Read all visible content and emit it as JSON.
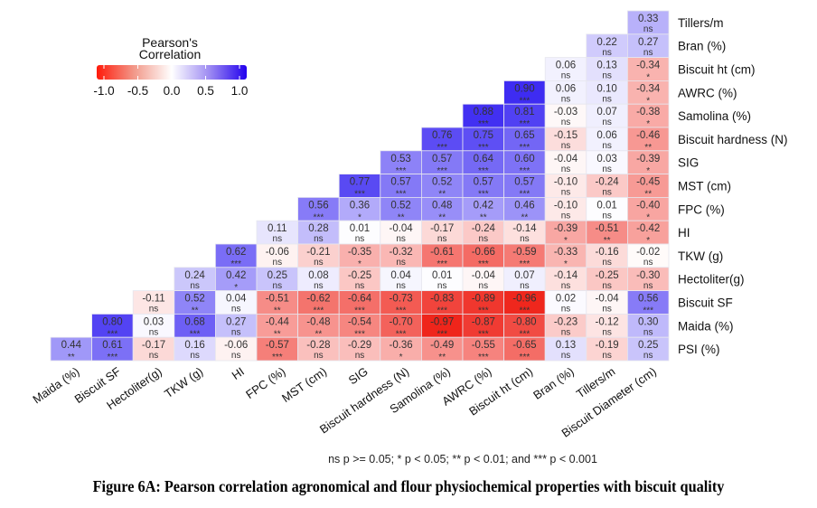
{
  "chart_data": {
    "type": "heatmap",
    "title": "",
    "subtitle": "",
    "variant": "lower-triangular correlation matrix (rotated)",
    "x_labels": [
      "Maida (%)",
      "Biscuit SF",
      "Hectoliter(g)",
      "TKW (g)",
      "HI",
      "FPC (%)",
      "MST (cm)",
      "SIG",
      "Biscuit hardness (N)",
      "Samolina (%)",
      "AWRC (%)",
      "Biscuit ht (cm)",
      "Bran (%)",
      "Tillers/m",
      "Biscuit Diameter (cm)"
    ],
    "y_labels": [
      "Tillers/m",
      "Bran (%)",
      "Biscuit ht (cm)",
      "AWRC (%)",
      "Samolina (%)",
      "Biscuit hardness (N)",
      "SIG",
      "MST (cm)",
      "FPC (%)",
      "HI",
      "TKW (g)",
      "Hectoliter(g)",
      "Biscuit SF",
      "Maida (%)",
      "PSI (%)"
    ],
    "rows": [
      {
        "label": "Tillers/m",
        "values": [
          0.33
        ],
        "sig": [
          "ns"
        ]
      },
      {
        "label": "Bran (%)",
        "values": [
          0.22,
          0.27
        ],
        "sig": [
          "ns",
          "ns"
        ]
      },
      {
        "label": "Biscuit ht (cm)",
        "values": [
          0.06,
          0.13,
          -0.34
        ],
        "sig": [
          "ns",
          "ns",
          "*"
        ]
      },
      {
        "label": "AWRC (%)",
        "values": [
          0.9,
          0.06,
          0.1,
          -0.34
        ],
        "sig": [
          "***",
          "ns",
          "ns",
          "*"
        ]
      },
      {
        "label": "Samolina (%)",
        "values": [
          0.88,
          0.81,
          -0.03,
          0.07,
          -0.38
        ],
        "sig": [
          "***",
          "***",
          "ns",
          "ns",
          "*"
        ]
      },
      {
        "label": "Biscuit hardness (N)",
        "values": [
          0.76,
          0.75,
          0.65,
          -0.15,
          0.06,
          -0.46
        ],
        "sig": [
          "***",
          "***",
          "***",
          "ns",
          "ns",
          "**"
        ]
      },
      {
        "label": "SIG",
        "values": [
          0.53,
          0.57,
          0.64,
          0.6,
          -0.04,
          0.03,
          -0.39
        ],
        "sig": [
          "***",
          "***",
          "***",
          "***",
          "ns",
          "ns",
          "*"
        ]
      },
      {
        "label": "MST (cm)",
        "values": [
          0.77,
          0.57,
          0.52,
          0.57,
          0.57,
          -0.1,
          -0.24,
          -0.45
        ],
        "sig": [
          "***",
          "***",
          "**",
          "***",
          "***",
          "ns",
          "ns",
          "**"
        ]
      },
      {
        "label": "FPC (%)",
        "values": [
          0.56,
          0.36,
          0.52,
          0.48,
          0.42,
          0.46,
          -0.1,
          0.01,
          -0.4
        ],
        "sig": [
          "***",
          "*",
          "**",
          "**",
          "**",
          "**",
          "ns",
          "ns",
          "*"
        ]
      },
      {
        "label": "HI",
        "values": [
          0.11,
          0.28,
          0.01,
          -0.04,
          -0.17,
          -0.24,
          -0.14,
          -0.39,
          -0.51,
          -0.42
        ],
        "sig": [
          "ns",
          "ns",
          "ns",
          "ns",
          "ns",
          "ns",
          "ns",
          "*",
          "**",
          "*"
        ]
      },
      {
        "label": "TKW (g)",
        "values": [
          0.62,
          -0.06,
          -0.21,
          -0.35,
          -0.32,
          -0.61,
          -0.66,
          -0.59,
          -0.33,
          -0.16,
          -0.02
        ],
        "sig": [
          "***",
          "ns",
          "ns",
          "*",
          "ns",
          "***",
          "***",
          "***",
          "*",
          "ns",
          "ns"
        ]
      },
      {
        "label": "Hectoliter(g)",
        "values": [
          0.24,
          0.42,
          0.25,
          0.08,
          -0.25,
          0.04,
          0.01,
          -0.04,
          0.07,
          -0.14,
          -0.25,
          -0.3
        ],
        "sig": [
          "ns",
          "*",
          "ns",
          "ns",
          "ns",
          "ns",
          "ns",
          "ns",
          "ns",
          "ns",
          "ns",
          "ns"
        ]
      },
      {
        "label": "Biscuit SF",
        "values": [
          -0.11,
          0.52,
          0.04,
          -0.51,
          -0.62,
          -0.64,
          -0.73,
          -0.83,
          -0.89,
          -0.96,
          0.02,
          -0.04,
          0.56
        ],
        "sig": [
          "ns",
          "**",
          "ns",
          "**",
          "***",
          "***",
          "***",
          "***",
          "***",
          "***",
          "ns",
          "ns",
          "***"
        ]
      },
      {
        "label": "Maida (%)",
        "values": [
          0.8,
          0.03,
          0.68,
          0.27,
          -0.44,
          -0.48,
          -0.54,
          -0.7,
          -0.97,
          -0.87,
          -0.8,
          -0.23,
          -0.12,
          0.3
        ],
        "sig": [
          "***",
          "ns",
          "***",
          "ns",
          "**",
          "**",
          "***",
          "***",
          "***",
          "***",
          "***",
          "ns",
          "ns",
          "ns"
        ]
      },
      {
        "label": "PSI (%)",
        "values": [
          0.44,
          0.61,
          -0.17,
          0.16,
          -0.06,
          -0.57,
          -0.28,
          -0.29,
          -0.36,
          -0.49,
          -0.55,
          -0.65,
          0.13,
          -0.19,
          0.25
        ],
        "sig": [
          "**",
          "***",
          "ns",
          "ns",
          "ns",
          "***",
          "ns",
          "ns",
          "*",
          "**",
          "***",
          "***",
          "ns",
          "ns",
          "ns"
        ]
      }
    ],
    "legend": {
      "title_line1": "Pearson's",
      "title_line2": "Correlation",
      "ticks": [
        "-1.0",
        "-0.5",
        "0.0",
        "0.5",
        "1.0"
      ],
      "range": [
        -1.0,
        1.0
      ],
      "placement": "top-left"
    },
    "colors": {
      "low": "#ff0000",
      "mid": "#ffffff",
      "high": "#0000ff"
    },
    "grid": false
  },
  "footnote": "ns p >= 0.05; * p < 0.05; ** p < 0.01; and *** p < 0.001",
  "caption": "Figure 6A: Pearson correlation agronomical and flour physiochemical properties with biscuit quality"
}
